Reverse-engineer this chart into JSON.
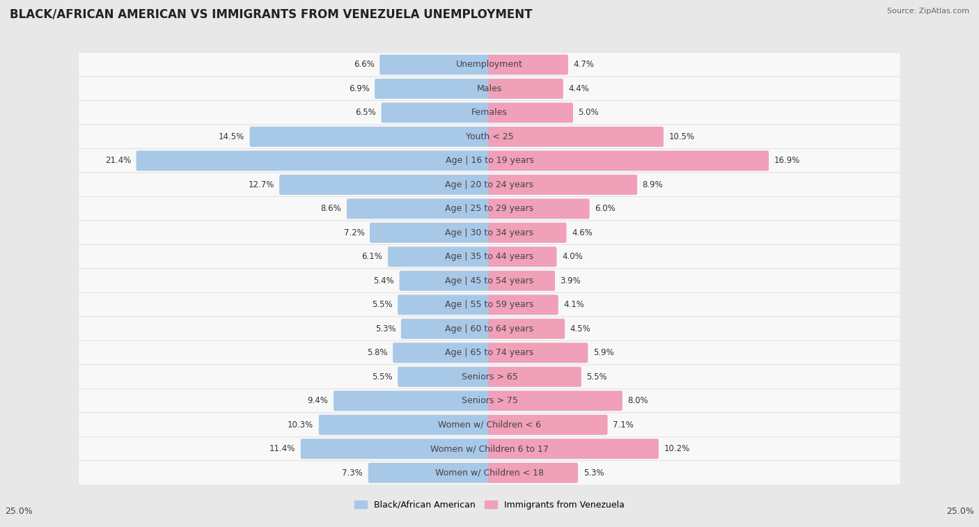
{
  "title": "BLACK/AFRICAN AMERICAN VS IMMIGRANTS FROM VENEZUELA UNEMPLOYMENT",
  "source": "Source: ZipAtlas.com",
  "categories": [
    "Unemployment",
    "Males",
    "Females",
    "Youth < 25",
    "Age | 16 to 19 years",
    "Age | 20 to 24 years",
    "Age | 25 to 29 years",
    "Age | 30 to 34 years",
    "Age | 35 to 44 years",
    "Age | 45 to 54 years",
    "Age | 55 to 59 years",
    "Age | 60 to 64 years",
    "Age | 65 to 74 years",
    "Seniors > 65",
    "Seniors > 75",
    "Women w/ Children < 6",
    "Women w/ Children 6 to 17",
    "Women w/ Children < 18"
  ],
  "left_values": [
    6.6,
    6.9,
    6.5,
    14.5,
    21.4,
    12.7,
    8.6,
    7.2,
    6.1,
    5.4,
    5.5,
    5.3,
    5.8,
    5.5,
    9.4,
    10.3,
    11.4,
    7.3
  ],
  "right_values": [
    4.7,
    4.4,
    5.0,
    10.5,
    16.9,
    8.9,
    6.0,
    4.6,
    4.0,
    3.9,
    4.1,
    4.5,
    5.9,
    5.5,
    8.0,
    7.1,
    10.2,
    5.3
  ],
  "left_color": "#a8c8e8",
  "right_color": "#f0a0b8",
  "left_label": "Black/African American",
  "right_label": "Immigrants from Venezuela",
  "axis_limit": 25.0,
  "background_color": "#e8e8e8",
  "row_bg_color": "#f8f8f8",
  "title_fontsize": 12,
  "label_fontsize": 9,
  "value_fontsize": 8.5,
  "axis_label_fontsize": 9
}
